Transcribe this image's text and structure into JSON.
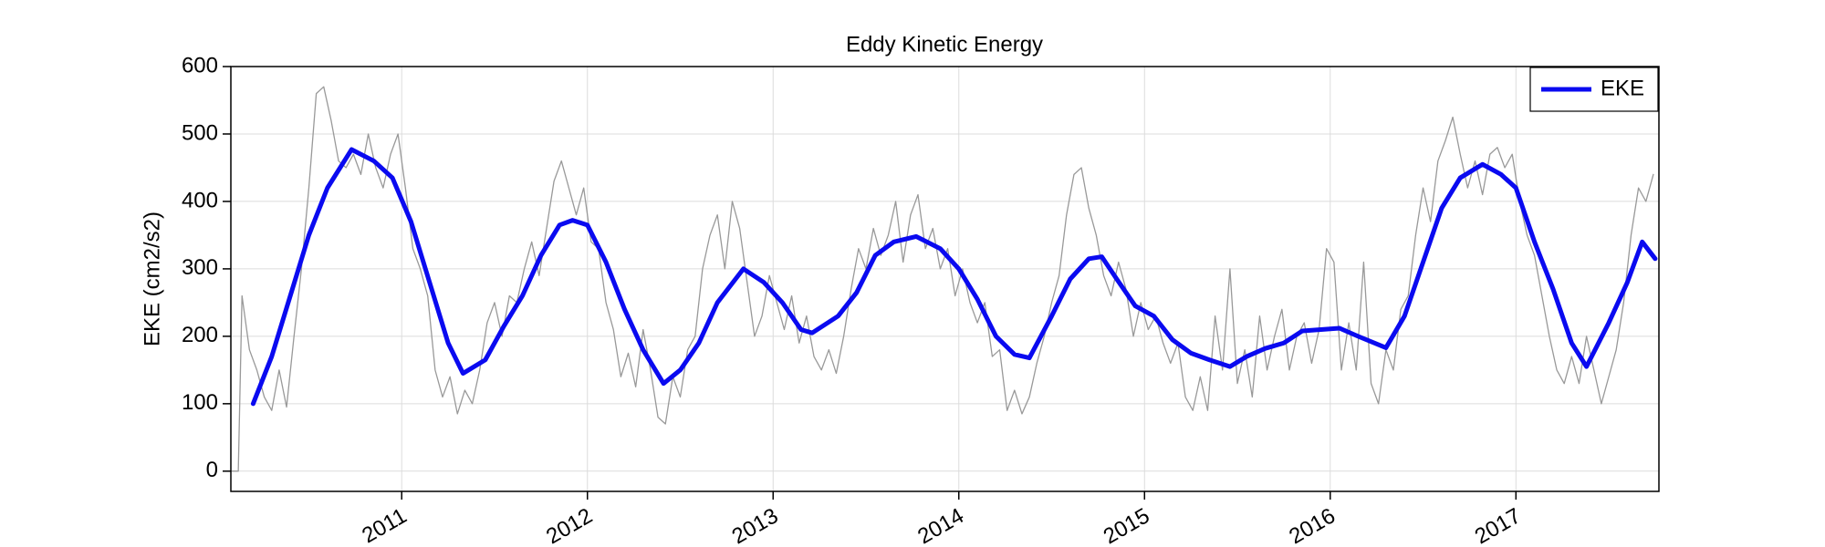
{
  "chart_data": {
    "type": "line",
    "title": "Eddy Kinetic Energy",
    "ylabel": "EKE (cm2/s2)",
    "xlim": [
      2010.08,
      2017.77
    ],
    "xticks": [
      2011,
      2012,
      2013,
      2014,
      2015,
      2016,
      2017
    ],
    "ylim": [
      -30,
      600
    ],
    "yticks": [
      0,
      100,
      200,
      300,
      400,
      500,
      600
    ],
    "grid": true,
    "legend": "upper right",
    "series": [
      {
        "color": "#999999",
        "width": 1.3,
        "x": [
          2010.08,
          2010.12,
          2010.14,
          2010.18,
          2010.22,
          2010.26,
          2010.3,
          2010.34,
          2010.38,
          2010.42,
          2010.46,
          2010.5,
          2010.54,
          2010.58,
          2010.62,
          2010.66,
          2010.7,
          2010.74,
          2010.78,
          2010.82,
          2010.86,
          2010.9,
          2010.94,
          2010.98,
          2011.02,
          2011.06,
          2011.1,
          2011.14,
          2011.18,
          2011.22,
          2011.26,
          2011.3,
          2011.34,
          2011.38,
          2011.42,
          2011.46,
          2011.5,
          2011.54,
          2011.58,
          2011.62,
          2011.66,
          2011.7,
          2011.74,
          2011.78,
          2011.82,
          2011.86,
          2011.9,
          2011.94,
          2011.98,
          2012.02,
          2012.06,
          2012.1,
          2012.14,
          2012.18,
          2012.22,
          2012.26,
          2012.3,
          2012.34,
          2012.38,
          2012.42,
          2012.46,
          2012.5,
          2012.54,
          2012.58,
          2012.62,
          2012.66,
          2012.7,
          2012.74,
          2012.78,
          2012.82,
          2012.86,
          2012.9,
          2012.94,
          2012.98,
          2013.02,
          2013.06,
          2013.1,
          2013.14,
          2013.18,
          2013.22,
          2013.26,
          2013.3,
          2013.34,
          2013.38,
          2013.42,
          2013.46,
          2013.5,
          2013.54,
          2013.58,
          2013.62,
          2013.66,
          2013.7,
          2013.74,
          2013.78,
          2013.82,
          2013.86,
          2013.9,
          2013.94,
          2013.98,
          2014.02,
          2014.06,
          2014.1,
          2014.14,
          2014.18,
          2014.22,
          2014.26,
          2014.3,
          2014.34,
          2014.38,
          2014.42,
          2014.46,
          2014.5,
          2014.54,
          2014.58,
          2014.62,
          2014.66,
          2014.7,
          2014.74,
          2014.78,
          2014.82,
          2014.86,
          2014.9,
          2014.94,
          2014.98,
          2015.02,
          2015.06,
          2015.1,
          2015.14,
          2015.18,
          2015.22,
          2015.26,
          2015.3,
          2015.34,
          2015.38,
          2015.42,
          2015.46,
          2015.5,
          2015.54,
          2015.58,
          2015.62,
          2015.66,
          2015.7,
          2015.74,
          2015.78,
          2015.82,
          2015.86,
          2015.9,
          2015.94,
          2015.98,
          2016.02,
          2016.06,
          2016.1,
          2016.14,
          2016.18,
          2016.22,
          2016.26,
          2016.3,
          2016.34,
          2016.38,
          2016.42,
          2016.46,
          2016.5,
          2016.54,
          2016.58,
          2016.62,
          2016.66,
          2016.7,
          2016.74,
          2016.78,
          2016.82,
          2016.86,
          2016.9,
          2016.94,
          2016.98,
          2017.02,
          2017.06,
          2017.1,
          2017.14,
          2017.18,
          2017.22,
          2017.26,
          2017.3,
          2017.34,
          2017.38,
          2017.42,
          2017.46,
          2017.5,
          2017.54,
          2017.58,
          2017.62,
          2017.66,
          2017.7,
          2017.74
        ],
        "values": [
          0,
          0,
          260,
          180,
          150,
          110,
          90,
          150,
          95,
          200,
          300,
          420,
          560,
          570,
          520,
          460,
          450,
          470,
          440,
          500,
          450,
          420,
          470,
          500,
          420,
          330,
          300,
          260,
          150,
          110,
          140,
          85,
          120,
          100,
          150,
          220,
          250,
          200,
          260,
          250,
          300,
          340,
          290,
          360,
          430,
          460,
          420,
          380,
          420,
          340,
          330,
          250,
          210,
          140,
          175,
          125,
          210,
          150,
          80,
          70,
          140,
          110,
          180,
          200,
          300,
          350,
          380,
          300,
          400,
          360,
          280,
          200,
          230,
          290,
          250,
          210,
          260,
          190,
          230,
          170,
          150,
          180,
          145,
          200,
          270,
          330,
          300,
          360,
          320,
          350,
          400,
          310,
          380,
          410,
          330,
          360,
          300,
          330,
          260,
          300,
          250,
          220,
          250,
          170,
          180,
          90,
          120,
          85,
          110,
          160,
          200,
          250,
          290,
          380,
          440,
          450,
          390,
          350,
          290,
          260,
          310,
          270,
          200,
          250,
          210,
          230,
          190,
          160,
          190,
          110,
          90,
          140,
          90,
          230,
          150,
          300,
          130,
          180,
          110,
          230,
          150,
          200,
          240,
          150,
          200,
          220,
          160,
          210,
          330,
          310,
          150,
          220,
          150,
          310,
          130,
          100,
          180,
          150,
          240,
          260,
          350,
          420,
          370,
          460,
          490,
          525,
          470,
          420,
          460,
          410,
          470,
          480,
          450,
          470,
          400,
          350,
          320,
          260,
          200,
          150,
          130,
          170,
          130,
          200,
          150,
          100,
          140,
          180,
          250,
          350,
          420,
          400,
          440
        ]
      },
      {
        "name": "EKE",
        "color": "#0a0af0",
        "width": 5,
        "x": [
          2010.2,
          2010.3,
          2010.4,
          2010.5,
          2010.6,
          2010.73,
          2010.85,
          2010.95,
          2011.05,
          2011.15,
          2011.25,
          2011.33,
          2011.45,
          2011.55,
          2011.65,
          2011.75,
          2011.85,
          2011.92,
          2012.0,
          2012.1,
          2012.2,
          2012.3,
          2012.41,
          2012.5,
          2012.6,
          2012.7,
          2012.84,
          2012.95,
          2013.05,
          2013.15,
          2013.21,
          2013.35,
          2013.45,
          2013.55,
          2013.65,
          2013.77,
          2013.9,
          2014.0,
          2014.1,
          2014.2,
          2014.3,
          2014.38,
          2014.5,
          2014.6,
          2014.7,
          2014.77,
          2014.85,
          2014.95,
          2015.05,
          2015.15,
          2015.25,
          2015.35,
          2015.46,
          2015.55,
          2015.65,
          2015.75,
          2015.85,
          2015.95,
          2016.05,
          2016.15,
          2016.3,
          2016.4,
          2016.5,
          2016.6,
          2016.7,
          2016.82,
          2016.92,
          2017.0,
          2017.1,
          2017.2,
          2017.3,
          2017.38,
          2017.5,
          2017.6,
          2017.68,
          2017.75
        ],
        "values": [
          100,
          170,
          260,
          350,
          420,
          477,
          460,
          435,
          370,
          280,
          190,
          145,
          165,
          215,
          260,
          320,
          365,
          372,
          365,
          310,
          240,
          180,
          130,
          150,
          190,
          250,
          300,
          280,
          250,
          210,
          205,
          230,
          265,
          320,
          340,
          348,
          330,
          300,
          255,
          200,
          173,
          168,
          230,
          285,
          315,
          318,
          285,
          245,
          230,
          195,
          175,
          165,
          155,
          170,
          182,
          190,
          208,
          210,
          212,
          200,
          183,
          230,
          310,
          390,
          435,
          455,
          440,
          420,
          340,
          270,
          190,
          155,
          220,
          280,
          340,
          315
        ]
      }
    ]
  }
}
